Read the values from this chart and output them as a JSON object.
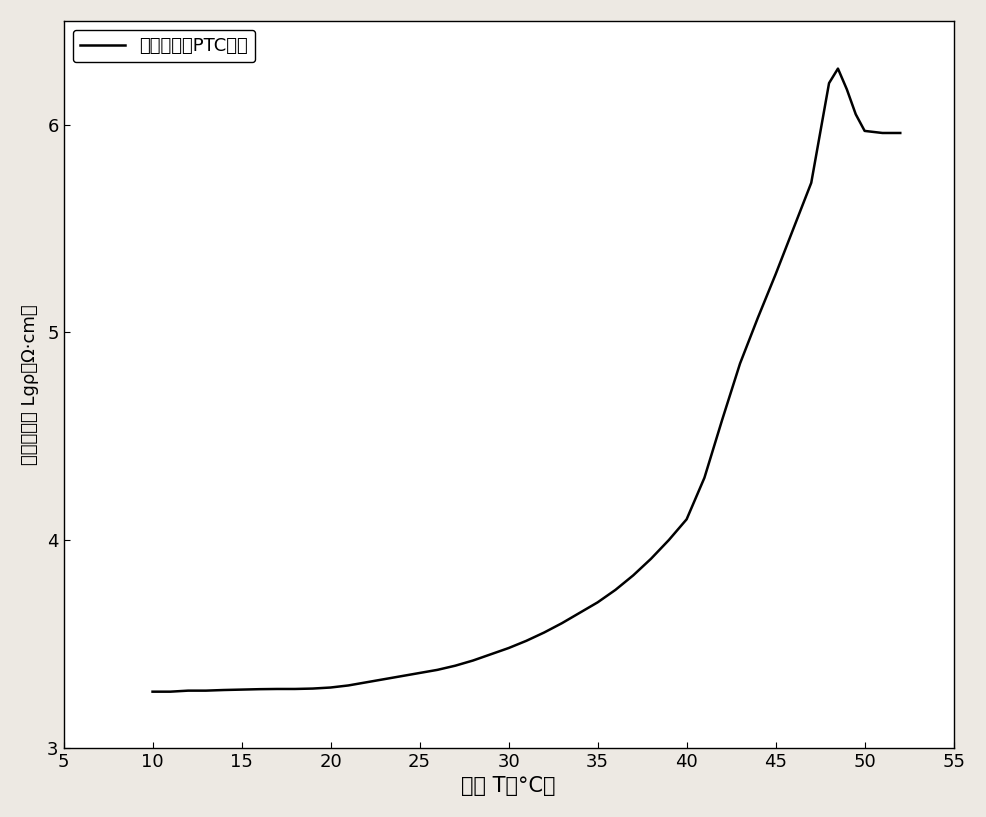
{
  "x": [
    10,
    11,
    12,
    13,
    14,
    15,
    16,
    17,
    18,
    19,
    20,
    21,
    22,
    23,
    24,
    25,
    26,
    27,
    28,
    29,
    30,
    31,
    32,
    33,
    34,
    35,
    36,
    37,
    38,
    39,
    40,
    41,
    42,
    43,
    44,
    45,
    46,
    47,
    48,
    48.5,
    49,
    49.5,
    50,
    51,
    52
  ],
  "y": [
    3.27,
    3.27,
    3.275,
    3.275,
    3.278,
    3.28,
    3.282,
    3.283,
    3.283,
    3.285,
    3.29,
    3.3,
    3.315,
    3.33,
    3.345,
    3.36,
    3.375,
    3.395,
    3.42,
    3.45,
    3.48,
    3.515,
    3.555,
    3.6,
    3.65,
    3.7,
    3.76,
    3.83,
    3.91,
    4.0,
    4.1,
    4.3,
    4.58,
    4.85,
    5.07,
    5.28,
    5.5,
    5.72,
    6.2,
    6.27,
    6.17,
    6.05,
    5.97,
    5.96,
    5.96
  ],
  "line_color": "#000000",
  "line_width": 1.8,
  "xlabel": "温度 T（°C）",
  "ylabel": "对数电阵率 Lgρ（Ω·cm）",
  "legend_label": "石蜡基柔性PTC材料",
  "xlim": [
    5,
    55
  ],
  "ylim": [
    3,
    6.5
  ],
  "xticks": [
    5,
    10,
    15,
    20,
    25,
    30,
    35,
    40,
    45,
    50,
    55
  ],
  "yticks": [
    3,
    4,
    5,
    6
  ],
  "background_color": "#ede9e3",
  "axes_background": "#ffffff",
  "xlabel_fontsize": 15,
  "ylabel_fontsize": 13,
  "tick_fontsize": 13,
  "legend_fontsize": 13
}
